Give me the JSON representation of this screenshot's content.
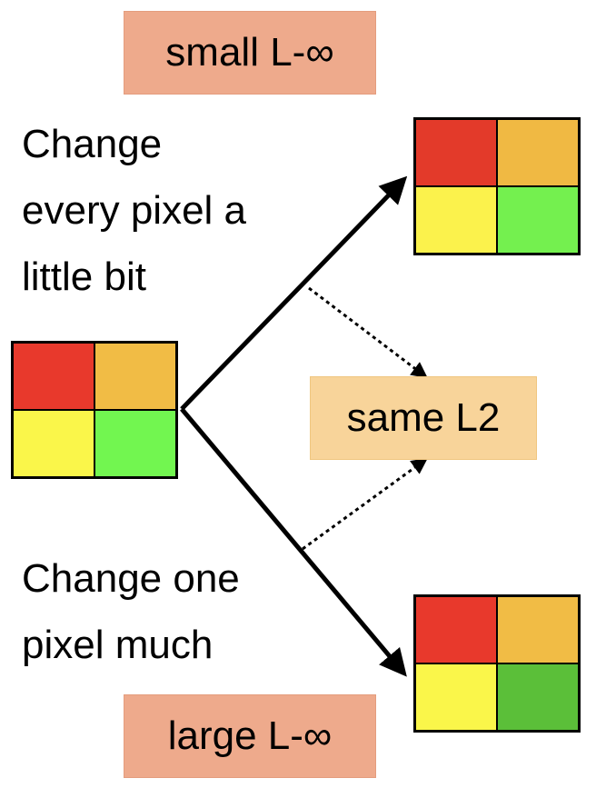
{
  "labels": {
    "small_linf": "small L-∞",
    "large_linf": "large L-∞",
    "same_l2": "same L2"
  },
  "captions": {
    "top": [
      "Change",
      "every pixel a",
      "little bit"
    ],
    "bottom": [
      "Change one",
      "pixel much"
    ]
  },
  "grids": {
    "original": {
      "cells": [
        "#e8392c",
        "#f1bc45",
        "#faf64a",
        "#72f650"
      ]
    },
    "small_change": {
      "cells": [
        "#e33a2a",
        "#f0b943",
        "#fbf24c",
        "#74f04f"
      ]
    },
    "one_pixel_change": {
      "cells": [
        "#e8392c",
        "#f1bc45",
        "#faf64a",
        "#5bbf39"
      ]
    }
  },
  "colors": {
    "linf_box": "#eeaa8c",
    "l2_box": "#f8d49a",
    "arrow": "#000000"
  }
}
